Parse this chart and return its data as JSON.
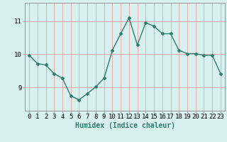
{
  "x": [
    0,
    1,
    2,
    3,
    4,
    5,
    6,
    7,
    8,
    9,
    10,
    11,
    12,
    13,
    14,
    15,
    16,
    17,
    18,
    19,
    20,
    21,
    22,
    23
  ],
  "y": [
    9.97,
    9.72,
    9.68,
    9.42,
    9.28,
    8.75,
    8.63,
    8.82,
    9.02,
    9.28,
    10.12,
    10.62,
    11.1,
    10.28,
    10.95,
    10.85,
    10.62,
    10.62,
    10.12,
    10.02,
    10.02,
    9.97,
    9.97,
    9.42
  ],
  "line_color": "#2e7d6e",
  "marker": "D",
  "marker_size": 2.0,
  "bg_color": "#d8f0ee",
  "grid_color": "#e8a0a0",
  "xlabel": "Humidex (Indice chaleur)",
  "ylim": [
    8.3,
    11.55
  ],
  "xlim": [
    -0.5,
    23.5
  ],
  "yticks": [
    9,
    10,
    11
  ],
  "xticks": [
    0,
    1,
    2,
    3,
    4,
    5,
    6,
    7,
    8,
    9,
    10,
    11,
    12,
    13,
    14,
    15,
    16,
    17,
    18,
    19,
    20,
    21,
    22,
    23
  ],
  "xlabel_fontsize": 7,
  "tick_fontsize": 6.5,
  "linewidth": 1.0
}
